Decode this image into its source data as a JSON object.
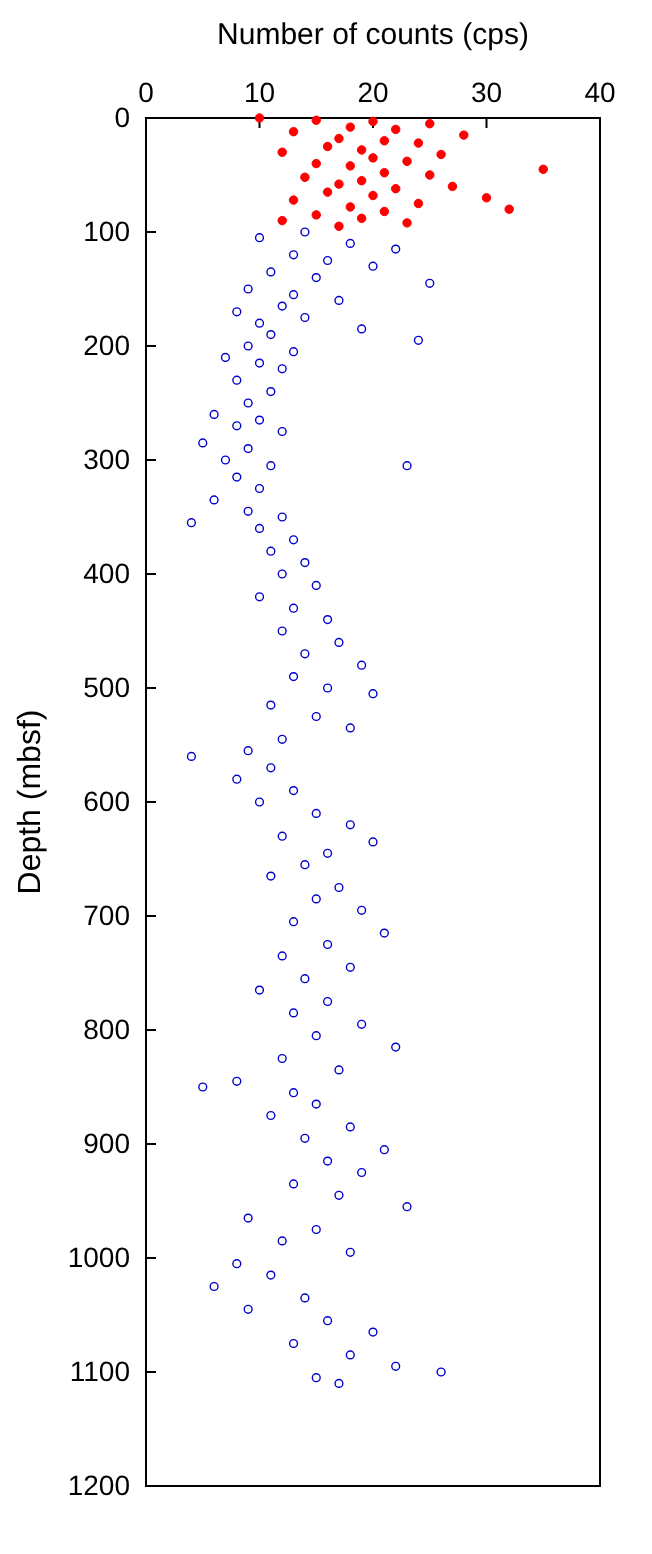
{
  "chart_data": {
    "type": "scatter",
    "xlabel": "Number of counts (cps)",
    "ylabel": "Depth (mbsf)",
    "xlim": [
      0,
      40
    ],
    "xticks": [
      0,
      10,
      20,
      30,
      40
    ],
    "ylim": [
      1200,
      0
    ],
    "yticks": [
      0,
      100,
      200,
      300,
      400,
      500,
      600,
      700,
      800,
      900,
      1000,
      1100,
      1200
    ],
    "grid": false,
    "marker": "circle",
    "series": [
      {
        "color": "#ff0000",
        "x": [
          10,
          15,
          20,
          25,
          18,
          22,
          13,
          28,
          17,
          21,
          24,
          16,
          19,
          12,
          26,
          20,
          23,
          15,
          18,
          35,
          21,
          25,
          14,
          19,
          17,
          27,
          22,
          16,
          20,
          30,
          13,
          24,
          18,
          32,
          21,
          15,
          19,
          12,
          23,
          17
        ],
        "values": [
          0,
          2,
          3,
          5,
          8,
          10,
          12,
          15,
          18,
          20,
          22,
          25,
          28,
          30,
          32,
          35,
          38,
          40,
          42,
          45,
          48,
          50,
          52,
          55,
          58,
          60,
          62,
          65,
          68,
          70,
          72,
          75,
          78,
          80,
          82,
          85,
          88,
          90,
          92,
          95
        ]
      },
      {
        "color": "#0000cc",
        "x": [
          14,
          10,
          18,
          22,
          13,
          16,
          20,
          11,
          15,
          25,
          9,
          13,
          17,
          12,
          8,
          14,
          10,
          19,
          11,
          24,
          9,
          13,
          7,
          10,
          12,
          8,
          11,
          9,
          6,
          10,
          8,
          12,
          5,
          9,
          7,
          11,
          23,
          8,
          10,
          6,
          9,
          12,
          4,
          10,
          13,
          11,
          14,
          12,
          15,
          10,
          13,
          16,
          12,
          17,
          14,
          19,
          13,
          16,
          20,
          11,
          15,
          18,
          12,
          9,
          4,
          11,
          8,
          13,
          10,
          15,
          18,
          12,
          20,
          16,
          14,
          11,
          17,
          15,
          19,
          13,
          21,
          16,
          12,
          18,
          14,
          10,
          16,
          13,
          19,
          15,
          22,
          12,
          17,
          8,
          5,
          13,
          15,
          11,
          18,
          14,
          21,
          16,
          19,
          13,
          17,
          23,
          9,
          15,
          12,
          18,
          8,
          11,
          6,
          14,
          9,
          16,
          20,
          13,
          18,
          22,
          15,
          17,
          26
        ],
        "values": [
          100,
          105,
          110,
          115,
          120,
          125,
          130,
          135,
          140,
          145,
          150,
          155,
          160,
          165,
          170,
          175,
          180,
          185,
          190,
          195,
          200,
          205,
          210,
          215,
          220,
          230,
          240,
          250,
          260,
          265,
          270,
          275,
          285,
          290,
          300,
          305,
          305,
          315,
          325,
          335,
          345,
          350,
          355,
          360,
          370,
          380,
          390,
          400,
          410,
          420,
          430,
          440,
          450,
          460,
          470,
          480,
          490,
          500,
          505,
          515,
          525,
          535,
          545,
          555,
          560,
          570,
          580,
          590,
          600,
          610,
          620,
          630,
          635,
          645,
          655,
          665,
          675,
          685,
          695,
          705,
          715,
          725,
          735,
          745,
          755,
          765,
          775,
          785,
          795,
          805,
          815,
          825,
          835,
          845,
          850,
          855,
          865,
          875,
          885,
          895,
          905,
          915,
          925,
          935,
          945,
          955,
          965,
          975,
          985,
          995,
          1005,
          1015,
          1025,
          1035,
          1045,
          1055,
          1065,
          1075,
          1085,
          1095,
          1105,
          1110,
          1100
        ]
      }
    ]
  }
}
